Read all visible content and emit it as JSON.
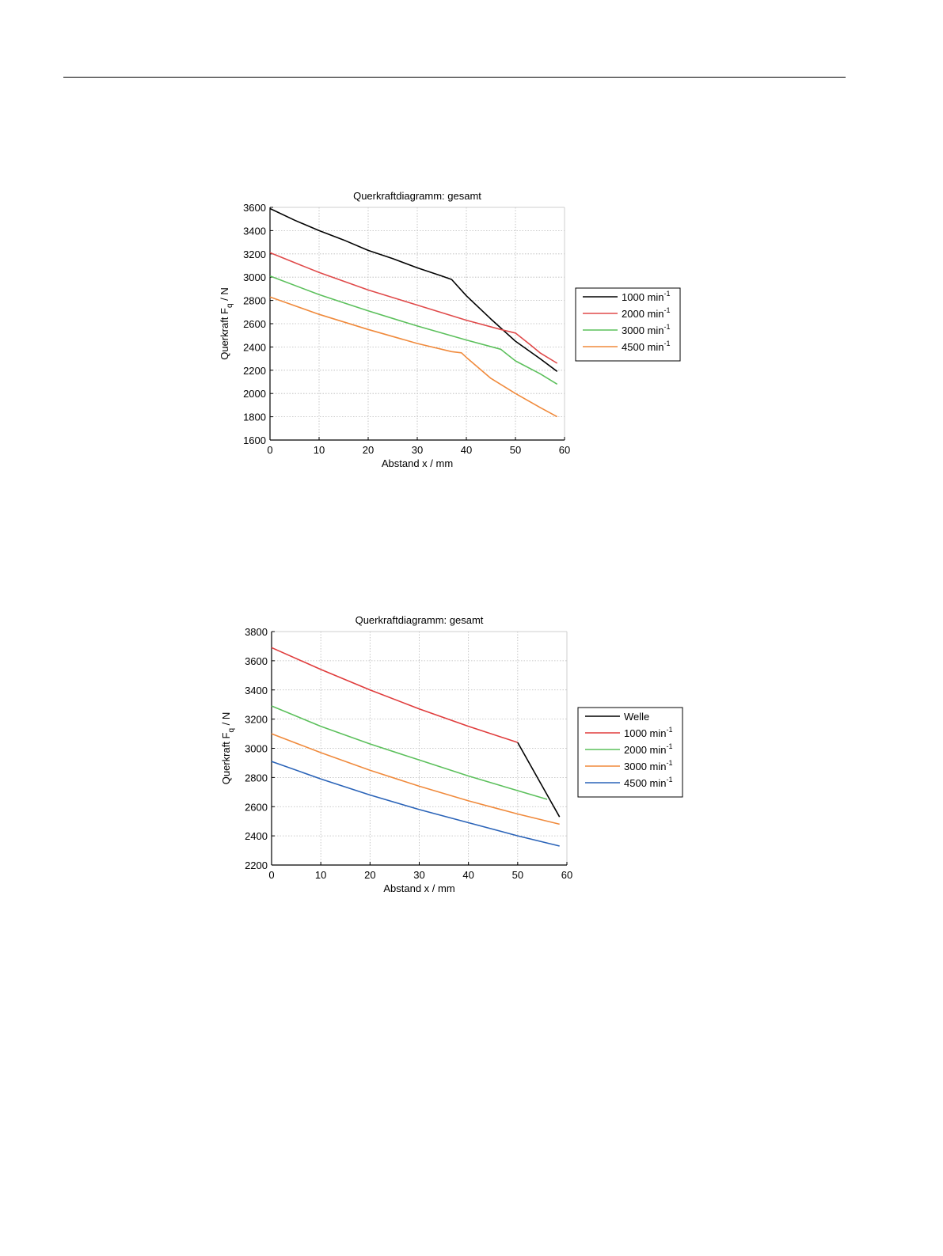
{
  "chart_data": [
    {
      "type": "line",
      "title": "Querkraftdiagramm: gesamt",
      "xlabel": "Abstand  x  /  mm",
      "ylabel": "Querkraft  F",
      "ylabel_sub": "q",
      "ylabel_unit": "  /  N",
      "xlim": [
        0,
        60
      ],
      "ylim": [
        1600,
        3600
      ],
      "xticks": [
        0,
        10,
        20,
        30,
        40,
        50,
        60
      ],
      "yticks": [
        1600,
        1800,
        2000,
        2200,
        2400,
        2600,
        2800,
        3000,
        3200,
        3400,
        3600
      ],
      "grid": true,
      "legend_position": "right",
      "series": [
        {
          "name": "1000 min",
          "sup": "-1",
          "color": "#000000",
          "x": [
            0,
            5,
            10,
            15,
            20,
            25,
            30,
            35,
            37,
            40,
            45,
            50,
            55,
            58.5
          ],
          "y": [
            3590,
            3490,
            3400,
            3320,
            3230,
            3160,
            3080,
            3010,
            2980,
            2840,
            2640,
            2450,
            2300,
            2190
          ]
        },
        {
          "name": "2000 min",
          "sup": "-1",
          "color": "#e04a4a",
          "x": [
            0,
            10,
            20,
            30,
            40,
            47,
            50,
            53,
            55,
            58.5
          ],
          "y": [
            3210,
            3040,
            2890,
            2760,
            2630,
            2550,
            2520,
            2420,
            2350,
            2260
          ]
        },
        {
          "name": "3000 min",
          "sup": "-1",
          "color": "#5cc05c",
          "x": [
            0,
            10,
            20,
            30,
            40,
            47,
            50,
            55,
            58.5
          ],
          "y": [
            3010,
            2850,
            2710,
            2580,
            2460,
            2380,
            2280,
            2170,
            2080
          ]
        },
        {
          "name": "4500 min",
          "sup": "-1",
          "color": "#f08a3c",
          "x": [
            0,
            10,
            20,
            30,
            37,
            39,
            40,
            45,
            50,
            55,
            58.5
          ],
          "y": [
            2830,
            2680,
            2550,
            2430,
            2360,
            2350,
            2310,
            2130,
            2000,
            1880,
            1800
          ]
        }
      ]
    },
    {
      "type": "line",
      "title": "Querkraftdiagramm: gesamt",
      "xlabel": "Abstand  x  /  mm",
      "ylabel": "Querkraft  F",
      "ylabel_sub": "q",
      "ylabel_unit": "  /  N",
      "xlim": [
        0,
        60
      ],
      "ylim": [
        2200,
        3800
      ],
      "xticks": [
        0,
        10,
        20,
        30,
        40,
        50,
        60
      ],
      "yticks": [
        2200,
        2400,
        2600,
        2800,
        3000,
        3200,
        3400,
        3600,
        3800
      ],
      "grid": true,
      "legend_position": "right",
      "series": [
        {
          "name": "Welle",
          "sup": "",
          "color": "#000000",
          "x": [
            50,
            58.5
          ],
          "y": [
            3040,
            2530
          ]
        },
        {
          "name": "1000 min",
          "sup": "-1",
          "color": "#e03c3c",
          "x": [
            0,
            10,
            20,
            30,
            40,
            50
          ],
          "y": [
            3690,
            3540,
            3400,
            3270,
            3150,
            3040
          ]
        },
        {
          "name": "2000 min",
          "sup": "-1",
          "color": "#5cc05c",
          "x": [
            0,
            10,
            20,
            30,
            40,
            50,
            56
          ],
          "y": [
            3290,
            3150,
            3030,
            2920,
            2810,
            2710,
            2650
          ]
        },
        {
          "name": "3000 min",
          "sup": "-1",
          "color": "#f08a3c",
          "x": [
            0,
            10,
            20,
            30,
            40,
            50,
            58.5
          ],
          "y": [
            3100,
            2970,
            2850,
            2740,
            2640,
            2550,
            2480
          ]
        },
        {
          "name": "4500 min",
          "sup": "-1",
          "color": "#2a63b8",
          "x": [
            0,
            10,
            20,
            30,
            40,
            50,
            58.5
          ],
          "y": [
            2910,
            2790,
            2680,
            2580,
            2490,
            2400,
            2330
          ]
        }
      ]
    }
  ]
}
